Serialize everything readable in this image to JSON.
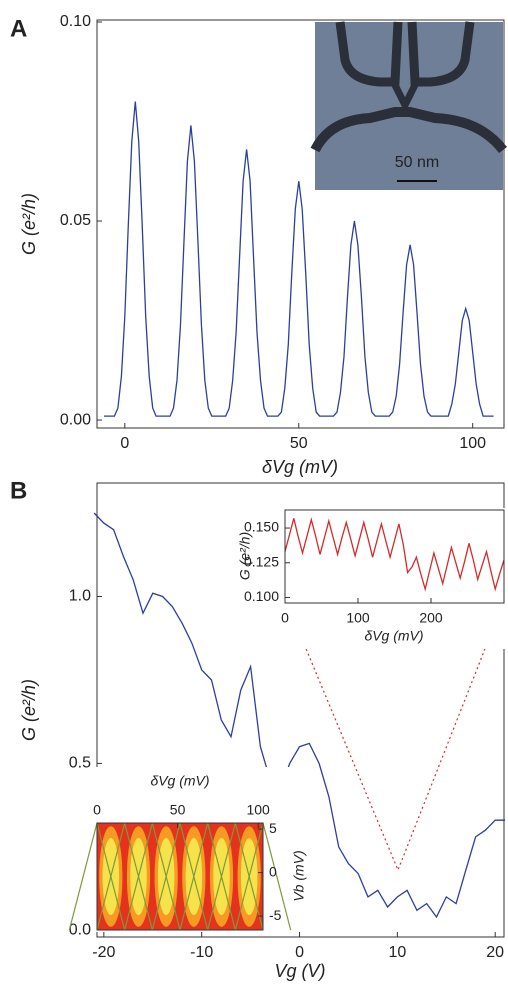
{
  "chart_data": [
    {
      "type": "line",
      "panel": "A",
      "xlabel": "δVg (mV)",
      "ylabel": "G (e²/h)",
      "color": "#2b3f9e",
      "inset_scale_label": "50 nm",
      "x": [
        -6,
        -5,
        -4,
        -3,
        -2,
        -1,
        0,
        1,
        2,
        3,
        4,
        5,
        6,
        7,
        8,
        9,
        10,
        11,
        12,
        13,
        14,
        15,
        16,
        17,
        18,
        19,
        20,
        21,
        22,
        23,
        24,
        25,
        26,
        27,
        28,
        29,
        30,
        31,
        32,
        33,
        34,
        35,
        36,
        37,
        38,
        39,
        40,
        41,
        42,
        43,
        44,
        45,
        46,
        47,
        48,
        49,
        50,
        51,
        52,
        53,
        54,
        55,
        56,
        57,
        58,
        59,
        60,
        61,
        62,
        63,
        64,
        65,
        66,
        67,
        68,
        69,
        70,
        71,
        72,
        73,
        74,
        75,
        76,
        77,
        78,
        79,
        80,
        81,
        82,
        83,
        84,
        85,
        86,
        87,
        88,
        89,
        90,
        91,
        92,
        93,
        94,
        95,
        96,
        97,
        98,
        99,
        100,
        101,
        102,
        103,
        104,
        105,
        106
      ],
      "values": [
        0.001,
        0.001,
        0.001,
        0.001,
        0.003,
        0.011,
        0.026,
        0.049,
        0.07,
        0.08,
        0.07,
        0.049,
        0.026,
        0.011,
        0.003,
        0.001,
        0.001,
        0.001,
        0.001,
        0.001,
        0.003,
        0.01,
        0.024,
        0.045,
        0.065,
        0.074,
        0.065,
        0.045,
        0.024,
        0.01,
        0.003,
        0.001,
        0.001,
        0.001,
        0.001,
        0.001,
        0.003,
        0.01,
        0.022,
        0.041,
        0.06,
        0.068,
        0.06,
        0.041,
        0.022,
        0.01,
        0.003,
        0.001,
        0.001,
        0.001,
        0.001,
        0.002,
        0.008,
        0.019,
        0.037,
        0.053,
        0.06,
        0.053,
        0.037,
        0.019,
        0.008,
        0.002,
        0.001,
        0.001,
        0.001,
        0.001,
        0.001,
        0.002,
        0.007,
        0.016,
        0.031,
        0.044,
        0.05,
        0.044,
        0.031,
        0.016,
        0.007,
        0.002,
        0.001,
        0.001,
        0.001,
        0.001,
        0.001,
        0.002,
        0.006,
        0.014,
        0.027,
        0.039,
        0.044,
        0.039,
        0.027,
        0.014,
        0.006,
        0.002,
        0.001,
        0.001,
        0.001,
        0.001,
        0.001,
        0.001,
        0.004,
        0.009,
        0.017,
        0.025,
        0.028,
        0.025,
        0.017,
        0.009,
        0.004,
        0.001,
        0.001,
        0.001,
        0.001
      ],
      "xlim": [
        -8,
        109
      ],
      "ylim": [
        -0.002,
        0.1005
      ],
      "xticks": [
        0,
        50,
        100
      ],
      "yticks": [
        {
          "value": 0,
          "label": "0.00"
        },
        {
          "value": 0.05,
          "label": "0.05"
        },
        {
          "value": 0.1,
          "label": "0.10"
        }
      ]
    },
    {
      "type": "line",
      "panel": "B",
      "xlabel": "Vg (V)",
      "ylabel": "G (e²/h)",
      "color": "#2b3f9e",
      "x": [
        -21,
        -20,
        -19,
        -18,
        -17,
        -16,
        -15,
        -14,
        -13,
        -12,
        -11,
        -10,
        -9,
        -8,
        -7,
        -6,
        -5,
        -4,
        -3,
        -2,
        -1,
        0,
        1,
        2,
        3,
        4,
        5,
        6,
        7,
        8,
        9,
        10,
        11,
        12,
        13,
        14,
        15,
        16,
        17,
        18,
        19,
        20,
        21
      ],
      "values": [
        1.25,
        1.22,
        1.2,
        1.12,
        1.05,
        0.95,
        1.01,
        1.0,
        0.97,
        0.92,
        0.86,
        0.78,
        0.75,
        0.63,
        0.58,
        0.72,
        0.79,
        0.55,
        0.45,
        0.42,
        0.5,
        0.55,
        0.56,
        0.5,
        0.4,
        0.25,
        0.2,
        0.17,
        0.1,
        0.12,
        0.07,
        0.1,
        0.12,
        0.06,
        0.08,
        0.04,
        0.1,
        0.08,
        0.18,
        0.28,
        0.3,
        0.33,
        0.33
      ],
      "xlim": [
        -20.7,
        20.9
      ],
      "ylim": [
        -0.02,
        1.34
      ],
      "xticks": [
        -20,
        -10,
        0,
        10,
        20
      ],
      "yticks": [
        {
          "value": 0,
          "label": "0.0"
        },
        {
          "value": 0.5,
          "label": "0.5"
        },
        {
          "value": 1,
          "label": "1.0"
        }
      ]
    },
    {
      "type": "line",
      "xlabel": "δVg (mV)",
      "ylabel": "G (e²/h)",
      "color": "#d42a2a",
      "x": [
        0,
        6,
        12,
        18,
        24,
        30,
        36,
        42,
        48,
        54,
        60,
        66,
        72,
        78,
        84,
        90,
        96,
        102,
        108,
        114,
        120,
        126,
        132,
        138,
        144,
        150,
        156,
        162,
        168,
        174,
        180,
        186,
        192,
        198,
        204,
        210,
        216,
        222,
        228,
        234,
        240,
        246,
        252,
        258,
        264,
        270,
        276,
        282,
        288,
        294,
        300
      ],
      "values": [
        0.133,
        0.145,
        0.157,
        0.144,
        0.132,
        0.144,
        0.156,
        0.144,
        0.131,
        0.143,
        0.155,
        0.143,
        0.131,
        0.143,
        0.154,
        0.142,
        0.13,
        0.142,
        0.154,
        0.142,
        0.129,
        0.141,
        0.153,
        0.141,
        0.129,
        0.141,
        0.153,
        0.138,
        0.118,
        0.122,
        0.129,
        0.117,
        0.106,
        0.119,
        0.132,
        0.121,
        0.11,
        0.123,
        0.136,
        0.125,
        0.114,
        0.126,
        0.139,
        0.127,
        0.113,
        0.123,
        0.133,
        0.119,
        0.106,
        0.117,
        0.127
      ],
      "xlim": [
        0,
        300
      ],
      "ylim": [
        0.096,
        0.163
      ],
      "xticks": [
        0,
        100,
        200
      ],
      "yticks": [
        {
          "value": 0.1,
          "label": "0.100"
        },
        {
          "value": 0.125,
          "label": "0.125"
        },
        {
          "value": 0.15,
          "label": "0.150"
        }
      ]
    },
    {
      "type": "image",
      "xlabel": "δVg (mV)",
      "ylabel": "Vb (mV)",
      "xlim": [
        0,
        103
      ],
      "ylim": [
        -6.6,
        5.7
      ],
      "xticks": [
        0,
        50,
        100
      ],
      "yticks": [
        5,
        0,
        -5
      ],
      "xaxis_position": "top",
      "yaxis_position": "right"
    }
  ]
}
